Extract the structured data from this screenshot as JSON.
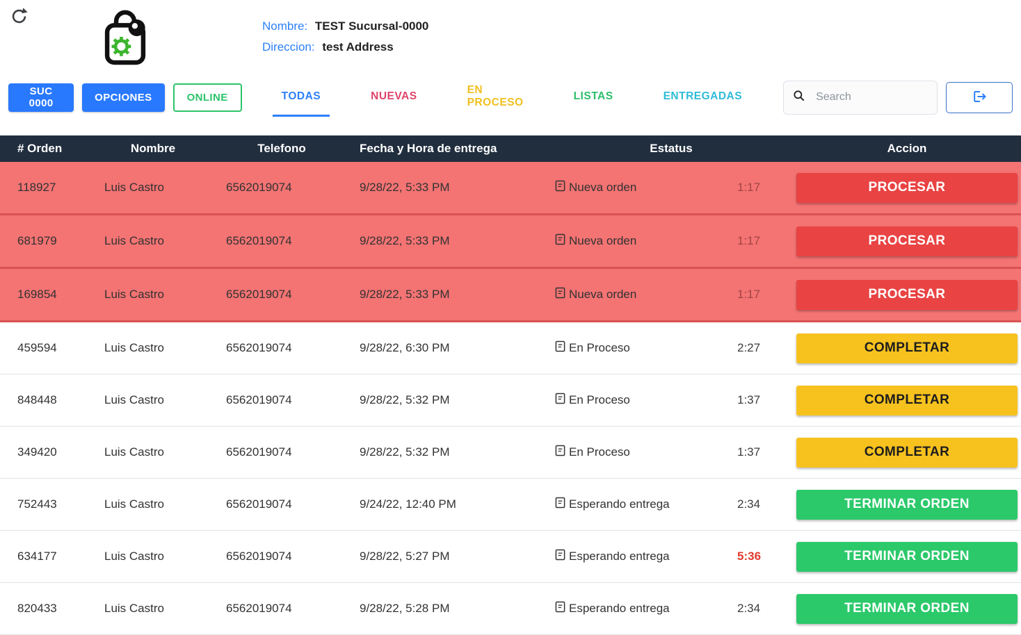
{
  "header": {
    "nombre_label": "Nombre:",
    "nombre_value": "TEST Sucursal-0000",
    "direccion_label": "Direccion:",
    "direccion_value": "test Address"
  },
  "toolbar": {
    "suc_button": "SUC 0000",
    "opciones_button": "OPCIONES",
    "online_button": "ONLINE",
    "tabs": [
      {
        "label": "TODAS",
        "color": "#2d7ff9",
        "active": true
      },
      {
        "label": "NUEVAS",
        "color": "#e0436a",
        "active": false
      },
      {
        "label": "EN PROCESO",
        "color": "#f0c020",
        "active": false
      },
      {
        "label": "LISTAS",
        "color": "#2bbf6a",
        "active": false
      },
      {
        "label": "ENTREGADAS",
        "color": "#2fbcd8",
        "active": false
      }
    ],
    "search": {
      "placeholder": "Search"
    }
  },
  "colors": {
    "accent_blue": "#2979ff",
    "table_header_bg": "#212e3e",
    "row_new_bg": "#f47373",
    "btn_procesar": "#e94343",
    "btn_completar": "#f7c21e",
    "btn_terminar": "#2bc96a",
    "timer_alert": "#e03a2f",
    "online_green": "#2bc46a"
  },
  "table": {
    "columns": [
      "# Orden",
      "Nombre",
      "Telefono",
      "Fecha y Hora de entrega",
      "Estatus",
      "Accion"
    ],
    "rows": [
      {
        "orden": "118927",
        "nombre": "Luis Castro",
        "telefono": "6562019074",
        "fecha": "9/28/22, 5:33 PM",
        "estatus": "Nueva orden",
        "timer": "1:17",
        "timer_alert": false,
        "action": "PROCESAR",
        "row_style": "red",
        "action_style": "red"
      },
      {
        "orden": "681979",
        "nombre": "Luis Castro",
        "telefono": "6562019074",
        "fecha": "9/28/22, 5:33 PM",
        "estatus": "Nueva orden",
        "timer": "1:17",
        "timer_alert": false,
        "action": "PROCESAR",
        "row_style": "red",
        "action_style": "red"
      },
      {
        "orden": "169854",
        "nombre": "Luis Castro",
        "telefono": "6562019074",
        "fecha": "9/28/22, 5:33 PM",
        "estatus": "Nueva orden",
        "timer": "1:17",
        "timer_alert": false,
        "action": "PROCESAR",
        "row_style": "red",
        "action_style": "red"
      },
      {
        "orden": "459594",
        "nombre": "Luis Castro",
        "telefono": "6562019074",
        "fecha": "9/28/22, 6:30 PM",
        "estatus": "En Proceso",
        "timer": "2:27",
        "timer_alert": false,
        "action": "COMPLETAR",
        "row_style": "white",
        "action_style": "yellow"
      },
      {
        "orden": "848448",
        "nombre": "Luis Castro",
        "telefono": "6562019074",
        "fecha": "9/28/22, 5:32 PM",
        "estatus": "En Proceso",
        "timer": "1:37",
        "timer_alert": false,
        "action": "COMPLETAR",
        "row_style": "white",
        "action_style": "yellow"
      },
      {
        "orden": "349420",
        "nombre": "Luis Castro",
        "telefono": "6562019074",
        "fecha": "9/28/22, 5:32 PM",
        "estatus": "En Proceso",
        "timer": "1:37",
        "timer_alert": false,
        "action": "COMPLETAR",
        "row_style": "white",
        "action_style": "yellow"
      },
      {
        "orden": "752443",
        "nombre": "Luis Castro",
        "telefono": "6562019074",
        "fecha": "9/24/22, 12:40 PM",
        "estatus": "Esperando entrega",
        "timer": "2:34",
        "timer_alert": false,
        "action": "TERMINAR ORDEN",
        "row_style": "white",
        "action_style": "green"
      },
      {
        "orden": "634177",
        "nombre": "Luis Castro",
        "telefono": "6562019074",
        "fecha": "9/28/22, 5:27 PM",
        "estatus": "Esperando entrega",
        "timer": "5:36",
        "timer_alert": true,
        "action": "TERMINAR ORDEN",
        "row_style": "white",
        "action_style": "green"
      },
      {
        "orden": "820433",
        "nombre": "Luis Castro",
        "telefono": "6562019074",
        "fecha": "9/28/22, 5:28 PM",
        "estatus": "Esperando entrega",
        "timer": "2:34",
        "timer_alert": false,
        "action": "TERMINAR ORDEN",
        "row_style": "white",
        "action_style": "green"
      }
    ]
  }
}
